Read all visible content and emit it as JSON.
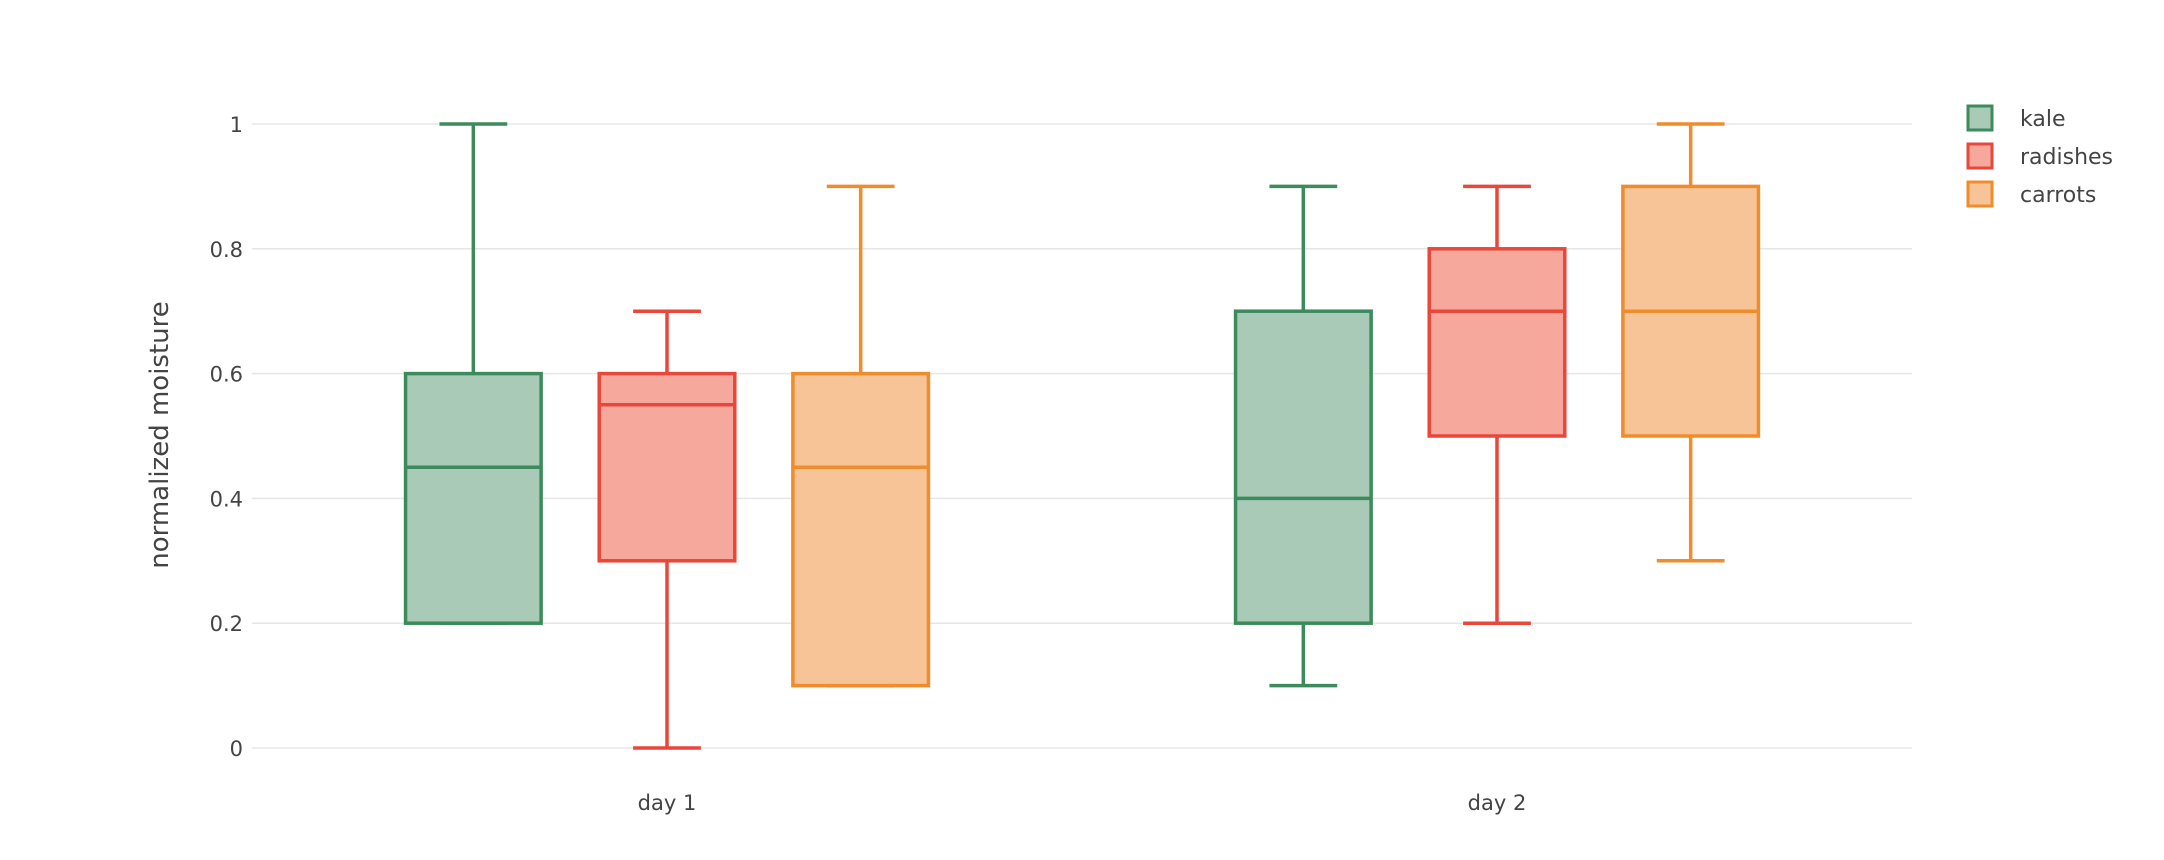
{
  "chart_data": {
    "type": "box",
    "title": "",
    "xlabel": "",
    "ylabel": "normalized moisture",
    "ylim": [
      -0.05,
      1.05
    ],
    "yticks": [
      0,
      0.2,
      0.4,
      0.6,
      0.8,
      1
    ],
    "ytick_labels": [
      "0",
      "0.2",
      "0.4",
      "0.6",
      "0.8",
      "1"
    ],
    "categories": [
      "day 1",
      "day 2"
    ],
    "grid": "horizontal",
    "legend_position": "top-right",
    "series": [
      {
        "name": "kale",
        "color": "#3d8b5c",
        "fill": "#a8cab6",
        "boxes": [
          {
            "min": 0.2,
            "q1": 0.2,
            "median": 0.45,
            "q3": 0.6,
            "max": 1.0
          },
          {
            "min": 0.1,
            "q1": 0.2,
            "median": 0.4,
            "q3": 0.7,
            "max": 0.9
          }
        ]
      },
      {
        "name": "radishes",
        "color": "#e8473a",
        "fill": "#f6a89d",
        "boxes": [
          {
            "min": 0.0,
            "q1": 0.3,
            "median": 0.55,
            "q3": 0.6,
            "max": 0.7
          },
          {
            "min": 0.2,
            "q1": 0.5,
            "median": 0.7,
            "q3": 0.8,
            "max": 0.9
          }
        ]
      },
      {
        "name": "carrots",
        "color": "#f08c2b",
        "fill": "#f7c498",
        "boxes": [
          {
            "min": 0.1,
            "q1": 0.1,
            "median": 0.45,
            "q3": 0.6,
            "max": 0.9
          },
          {
            "min": 0.3,
            "q1": 0.5,
            "median": 0.7,
            "q3": 0.9,
            "max": 1.0
          }
        ]
      }
    ]
  }
}
